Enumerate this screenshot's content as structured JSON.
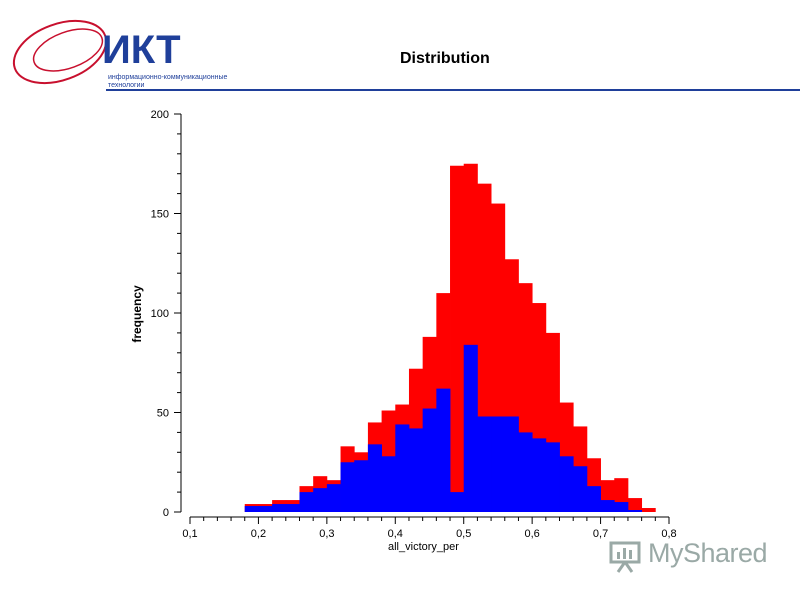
{
  "header": {
    "title": "Distribution",
    "logo_text": "ИКТ",
    "logo_subtitle_line1": "информационно-коммуникационные",
    "logo_subtitle_line2": "технологии",
    "accent_color": "#1f3f9a",
    "logo_color": "#c8102e"
  },
  "watermark": {
    "text": "MyShared",
    "icon": "presentation-board-icon"
  },
  "chart_data": {
    "type": "bar",
    "title": "",
    "xlabel": "all_victory_per",
    "ylabel": "frequency",
    "xlim": [
      0.1,
      0.8
    ],
    "ylim": [
      0,
      200
    ],
    "x_ticks": [
      "0,1",
      "0,2",
      "0,3",
      "0,4",
      "0,5",
      "0,6",
      "0,7",
      "0,8"
    ],
    "y_ticks": [
      "0",
      "50",
      "100",
      "150",
      "200"
    ],
    "bin_width": 0.02,
    "grid": false,
    "legend": "none",
    "bin_starts": [
      0.18,
      0.2,
      0.22,
      0.24,
      0.26,
      0.28,
      0.3,
      0.32,
      0.34,
      0.36,
      0.38,
      0.4,
      0.42,
      0.44,
      0.46,
      0.48,
      0.5,
      0.52,
      0.54,
      0.56,
      0.58,
      0.6,
      0.62,
      0.64,
      0.66,
      0.68,
      0.7,
      0.72,
      0.74,
      0.76
    ],
    "series": [
      {
        "color": "#ff0000",
        "values": [
          4,
          4,
          6,
          6,
          13,
          18,
          16,
          33,
          30,
          45,
          51,
          54,
          72,
          88,
          110,
          174,
          175,
          165,
          155,
          127,
          115,
          105,
          90,
          55,
          43,
          27,
          16,
          17,
          7,
          2
        ]
      },
      {
        "color": "#0000ff",
        "values": [
          3,
          3,
          4,
          4,
          10,
          12,
          14,
          25,
          26,
          34,
          28,
          44,
          42,
          52,
          62,
          10,
          84,
          48,
          48,
          48,
          40,
          37,
          35,
          28,
          23,
          13,
          6,
          5,
          1,
          0
        ]
      }
    ]
  }
}
